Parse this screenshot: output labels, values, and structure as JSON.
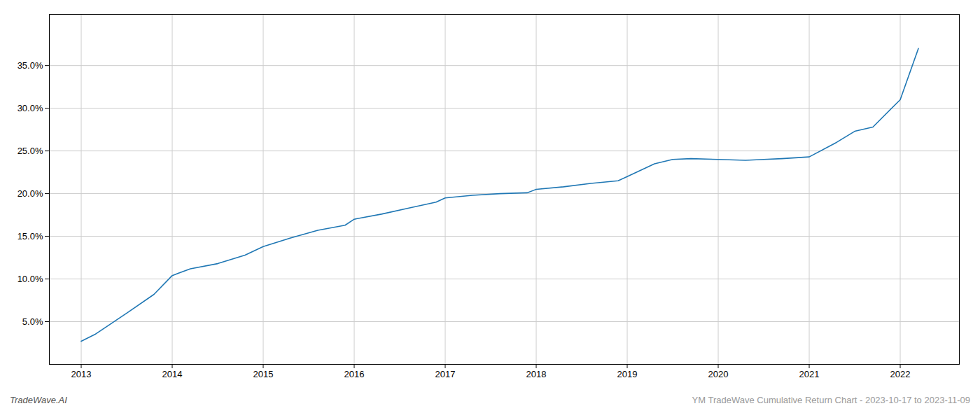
{
  "chart_data": {
    "type": "line",
    "x": [
      2013.0,
      2013.15,
      2013.5,
      2013.8,
      2014.0,
      2014.2,
      2014.5,
      2014.8,
      2015.0,
      2015.3,
      2015.6,
      2015.9,
      2016.0,
      2016.3,
      2016.6,
      2016.9,
      2017.0,
      2017.3,
      2017.6,
      2017.9,
      2018.0,
      2018.3,
      2018.6,
      2018.9,
      2019.0,
      2019.3,
      2019.5,
      2019.7,
      2020.0,
      2020.3,
      2020.5,
      2020.7,
      2021.0,
      2021.3,
      2021.5,
      2021.7,
      2022.0,
      2022.2
    ],
    "values": [
      0.027,
      0.035,
      0.06,
      0.082,
      0.104,
      0.112,
      0.118,
      0.128,
      0.138,
      0.148,
      0.157,
      0.163,
      0.17,
      0.176,
      0.183,
      0.19,
      0.195,
      0.198,
      0.2,
      0.201,
      0.205,
      0.208,
      0.212,
      0.215,
      0.22,
      0.235,
      0.24,
      0.241,
      0.24,
      0.239,
      0.24,
      0.241,
      0.243,
      0.26,
      0.273,
      0.278,
      0.31,
      0.37
    ],
    "color": "#1f77b4",
    "xlim": [
      2012.65,
      2022.65
    ],
    "ylim": [
      0.0,
      0.41
    ],
    "xticks": [
      2013,
      2014,
      2015,
      2016,
      2017,
      2018,
      2019,
      2020,
      2021,
      2022
    ],
    "yticks": [
      {
        "value": 0.05,
        "label": "5.0%"
      },
      {
        "value": 0.1,
        "label": "10.0%"
      },
      {
        "value": 0.15,
        "label": "15.0%"
      },
      {
        "value": 0.2,
        "label": "20.0%"
      },
      {
        "value": 0.25,
        "label": "25.0%"
      },
      {
        "value": 0.3,
        "label": "30.0%"
      },
      {
        "value": 0.35,
        "label": "35.0%"
      }
    ],
    "grid": true,
    "annotations": [
      "TradeWave.AI",
      "YM TradeWave Cumulative Return Chart - 2023-10-17 to 2023-11-09"
    ]
  }
}
